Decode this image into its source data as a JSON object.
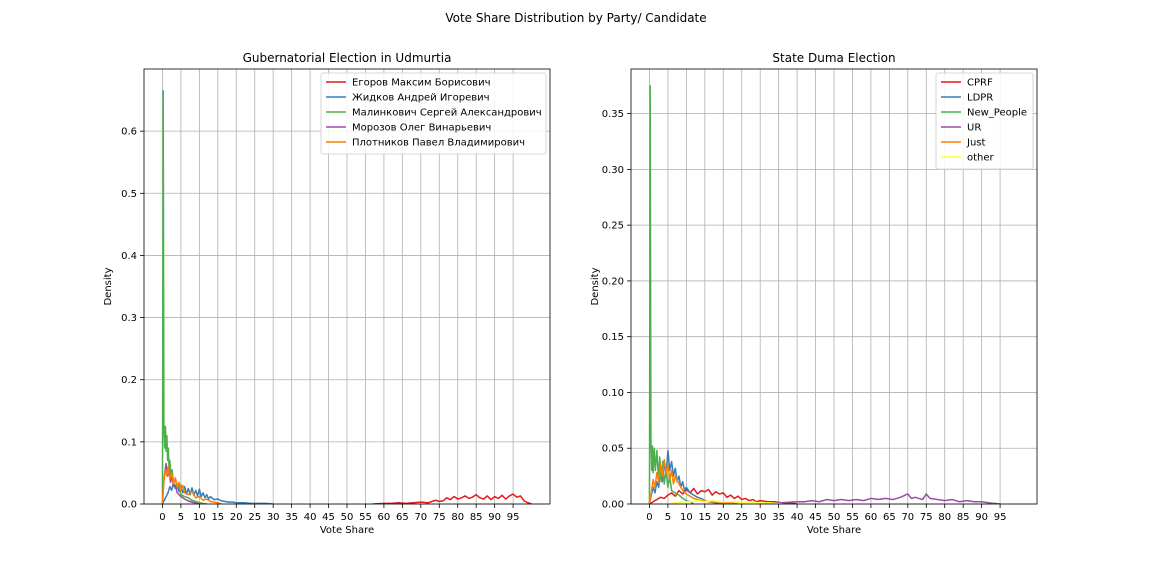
{
  "suptitle": "Vote Share Distribution by Party/ Candidate",
  "chart_data": [
    {
      "type": "line",
      "title": "Gubernatorial Election in Udmurtia",
      "xlabel": "Vote Share",
      "ylabel": "Density",
      "xlim": [
        -5,
        105
      ],
      "ylim": [
        0,
        0.7
      ],
      "xticks": [
        0,
        5,
        10,
        15,
        20,
        25,
        30,
        35,
        40,
        45,
        50,
        55,
        60,
        65,
        70,
        75,
        80,
        85,
        90,
        95
      ],
      "yticks": [
        0.0,
        0.1,
        0.2,
        0.3,
        0.4,
        0.5,
        0.6
      ],
      "ytick_decimals": 1,
      "grid": true,
      "legend_position": "top-right",
      "series": [
        {
          "name": "Егоров Максим Борисович",
          "color": "#e41a1c",
          "x": [
            57,
            60,
            62,
            64,
            66,
            68,
            70,
            72,
            74,
            75,
            76,
            77,
            78,
            79,
            80,
            81,
            82,
            83,
            84,
            85,
            86,
            87,
            88,
            89,
            90,
            91,
            92,
            93,
            94,
            95,
            96,
            97,
            98,
            99,
            100
          ],
          "y": [
            0.0,
            0.001,
            0.001,
            0.002,
            0.001,
            0.002,
            0.003,
            0.002,
            0.006,
            0.004,
            0.005,
            0.01,
            0.007,
            0.012,
            0.008,
            0.01,
            0.013,
            0.009,
            0.011,
            0.015,
            0.01,
            0.008,
            0.013,
            0.007,
            0.012,
            0.009,
            0.014,
            0.008,
            0.013,
            0.016,
            0.011,
            0.013,
            0.005,
            0.002,
            0.0
          ]
        },
        {
          "name": "Жидков Андрей Игоревич",
          "color": "#377eb8",
          "x": [
            0,
            0.5,
            1,
            1.5,
            2,
            2.5,
            3,
            3.5,
            4,
            4.5,
            5,
            5.5,
            6,
            6.5,
            7,
            7.5,
            8,
            8.5,
            9,
            9.5,
            10,
            10.5,
            11,
            11.5,
            12,
            12.5,
            13,
            14,
            15,
            16,
            17,
            18,
            19,
            20,
            22,
            24,
            26,
            28,
            30
          ],
          "y": [
            0.0,
            0.006,
            0.012,
            0.018,
            0.028,
            0.022,
            0.035,
            0.025,
            0.032,
            0.02,
            0.03,
            0.018,
            0.028,
            0.016,
            0.025,
            0.015,
            0.026,
            0.014,
            0.022,
            0.013,
            0.024,
            0.012,
            0.018,
            0.01,
            0.015,
            0.008,
            0.012,
            0.007,
            0.008,
            0.005,
            0.004,
            0.003,
            0.003,
            0.002,
            0.002,
            0.001,
            0.001,
            0.001,
            0.0
          ]
        },
        {
          "name": "Малинкович Сергей Александрович",
          "color": "#4daf4a",
          "x": [
            0,
            0.2,
            0.4,
            0.6,
            0.8,
            1,
            1.2,
            1.4,
            1.6,
            1.8,
            2,
            2.3,
            2.6,
            3,
            3.5,
            4,
            4.5,
            5,
            6,
            7,
            8,
            9,
            10,
            12
          ],
          "y": [
            0.0,
            0.665,
            0.12,
            0.09,
            0.125,
            0.085,
            0.11,
            0.07,
            0.09,
            0.055,
            0.07,
            0.045,
            0.055,
            0.035,
            0.04,
            0.025,
            0.03,
            0.015,
            0.012,
            0.01,
            0.006,
            0.004,
            0.002,
            0.0
          ]
        },
        {
          "name": "Морозов Олег Винарьевич",
          "color": "#984ea3",
          "x": [
            0,
            0.3,
            0.6,
            1,
            1.4,
            1.8,
            2.2,
            2.6,
            3,
            3.5,
            4,
            5,
            6,
            7,
            8,
            10
          ],
          "y": [
            0.0,
            0.03,
            0.05,
            0.065,
            0.045,
            0.055,
            0.035,
            0.045,
            0.028,
            0.03,
            0.018,
            0.012,
            0.008,
            0.005,
            0.003,
            0.0
          ]
        },
        {
          "name": "Плотников Павел Владимирович",
          "color": "#ff7f00",
          "x": [
            0,
            0.4,
            0.8,
            1.2,
            1.6,
            2,
            2.5,
            3,
            3.5,
            4,
            4.5,
            5,
            5.5,
            6,
            7,
            8,
            9,
            10,
            11,
            12,
            13,
            14,
            15,
            16
          ],
          "y": [
            0.0,
            0.04,
            0.055,
            0.045,
            0.06,
            0.04,
            0.05,
            0.032,
            0.042,
            0.028,
            0.035,
            0.022,
            0.03,
            0.018,
            0.015,
            0.02,
            0.01,
            0.012,
            0.006,
            0.008,
            0.004,
            0.003,
            0.002,
            0.0
          ]
        }
      ]
    },
    {
      "type": "line",
      "title": "State Duma Election",
      "xlabel": "Vote Share",
      "ylabel": "Density",
      "xlim": [
        -5,
        105
      ],
      "ylim": [
        0,
        0.39
      ],
      "xticks": [
        0,
        5,
        10,
        15,
        20,
        25,
        30,
        35,
        40,
        45,
        50,
        55,
        60,
        65,
        70,
        75,
        80,
        85,
        90,
        95
      ],
      "yticks": [
        0.0,
        0.05,
        0.1,
        0.15,
        0.2,
        0.25,
        0.3,
        0.35
      ],
      "ytick_decimals": 2,
      "grid": true,
      "legend_position": "top-right",
      "series": [
        {
          "name": "CPRF",
          "color": "#e41a1c",
          "x": [
            0,
            1,
            2,
            3,
            4,
            5,
            6,
            7,
            8,
            9,
            10,
            11,
            12,
            13,
            14,
            15,
            16,
            17,
            18,
            19,
            20,
            21,
            22,
            23,
            24,
            25,
            26,
            27,
            28,
            29,
            30,
            32,
            34,
            36,
            38,
            40
          ],
          "y": [
            0.0,
            0.002,
            0.004,
            0.006,
            0.005,
            0.008,
            0.01,
            0.007,
            0.012,
            0.009,
            0.013,
            0.01,
            0.014,
            0.009,
            0.012,
            0.011,
            0.013,
            0.008,
            0.011,
            0.009,
            0.01,
            0.006,
            0.008,
            0.005,
            0.007,
            0.004,
            0.005,
            0.003,
            0.004,
            0.002,
            0.003,
            0.002,
            0.002,
            0.001,
            0.001,
            0.0
          ]
        },
        {
          "name": "LDPR",
          "color": "#377eb8",
          "x": [
            0,
            0.5,
            1,
            1.5,
            2,
            2.5,
            3,
            3.5,
            4,
            4.5,
            5,
            5.5,
            6,
            6.5,
            7,
            7.5,
            8,
            8.5,
            9,
            9.5,
            10,
            11,
            12,
            13,
            14,
            15,
            16,
            18,
            20
          ],
          "y": [
            0.0,
            0.008,
            0.015,
            0.01,
            0.02,
            0.015,
            0.03,
            0.02,
            0.038,
            0.025,
            0.048,
            0.03,
            0.038,
            0.025,
            0.032,
            0.02,
            0.025,
            0.015,
            0.02,
            0.012,
            0.015,
            0.01,
            0.008,
            0.006,
            0.005,
            0.003,
            0.002,
            0.001,
            0.0
          ]
        },
        {
          "name": "New_People",
          "color": "#4daf4a",
          "x": [
            0,
            0.2,
            0.4,
            0.6,
            0.8,
            1,
            1.3,
            1.6,
            2,
            2.4,
            2.8,
            3.2,
            3.6,
            4,
            4.5,
            5,
            5.5,
            6,
            7,
            8,
            9,
            10,
            11,
            12
          ],
          "y": [
            0.0,
            0.375,
            0.055,
            0.03,
            0.052,
            0.028,
            0.05,
            0.03,
            0.048,
            0.025,
            0.042,
            0.02,
            0.038,
            0.018,
            0.03,
            0.015,
            0.025,
            0.012,
            0.01,
            0.008,
            0.005,
            0.003,
            0.002,
            0.0
          ]
        },
        {
          "name": "UR",
          "color": "#984ea3",
          "x": [
            30,
            35,
            40,
            42,
            44,
            46,
            48,
            50,
            52,
            54,
            56,
            58,
            60,
            62,
            64,
            66,
            68,
            70,
            71,
            72,
            74,
            75,
            76,
            78,
            80,
            82,
            84,
            86,
            88,
            90,
            92,
            95
          ],
          "y": [
            0.0,
            0.001,
            0.002,
            0.002,
            0.003,
            0.002,
            0.004,
            0.003,
            0.004,
            0.003,
            0.004,
            0.003,
            0.005,
            0.004,
            0.005,
            0.004,
            0.006,
            0.009,
            0.005,
            0.006,
            0.004,
            0.009,
            0.005,
            0.004,
            0.003,
            0.004,
            0.002,
            0.003,
            0.002,
            0.002,
            0.001,
            0.0
          ]
        },
        {
          "name": "Just",
          "color": "#ff7f00",
          "x": [
            0,
            0.5,
            1,
            1.5,
            2,
            2.5,
            3,
            3.5,
            4,
            4.5,
            5,
            5.5,
            6,
            6.5,
            7,
            8,
            9,
            10,
            11,
            12,
            13,
            14,
            15,
            16,
            18,
            20,
            22,
            24
          ],
          "y": [
            0.0,
            0.01,
            0.022,
            0.015,
            0.028,
            0.02,
            0.035,
            0.025,
            0.04,
            0.028,
            0.035,
            0.022,
            0.03,
            0.018,
            0.025,
            0.018,
            0.012,
            0.009,
            0.007,
            0.005,
            0.004,
            0.003,
            0.003,
            0.002,
            0.002,
            0.001,
            0.001,
            0.0
          ]
        },
        {
          "name": "other",
          "color": "#ffff33",
          "x": [
            5,
            7,
            9,
            11,
            13,
            15,
            17,
            19,
            21,
            23,
            25,
            27,
            30,
            33,
            36
          ],
          "y": [
            0.0,
            0.001,
            0.002,
            0.002,
            0.003,
            0.002,
            0.003,
            0.002,
            0.002,
            0.002,
            0.001,
            0.002,
            0.001,
            0.001,
            0.0
          ]
        }
      ]
    }
  ]
}
